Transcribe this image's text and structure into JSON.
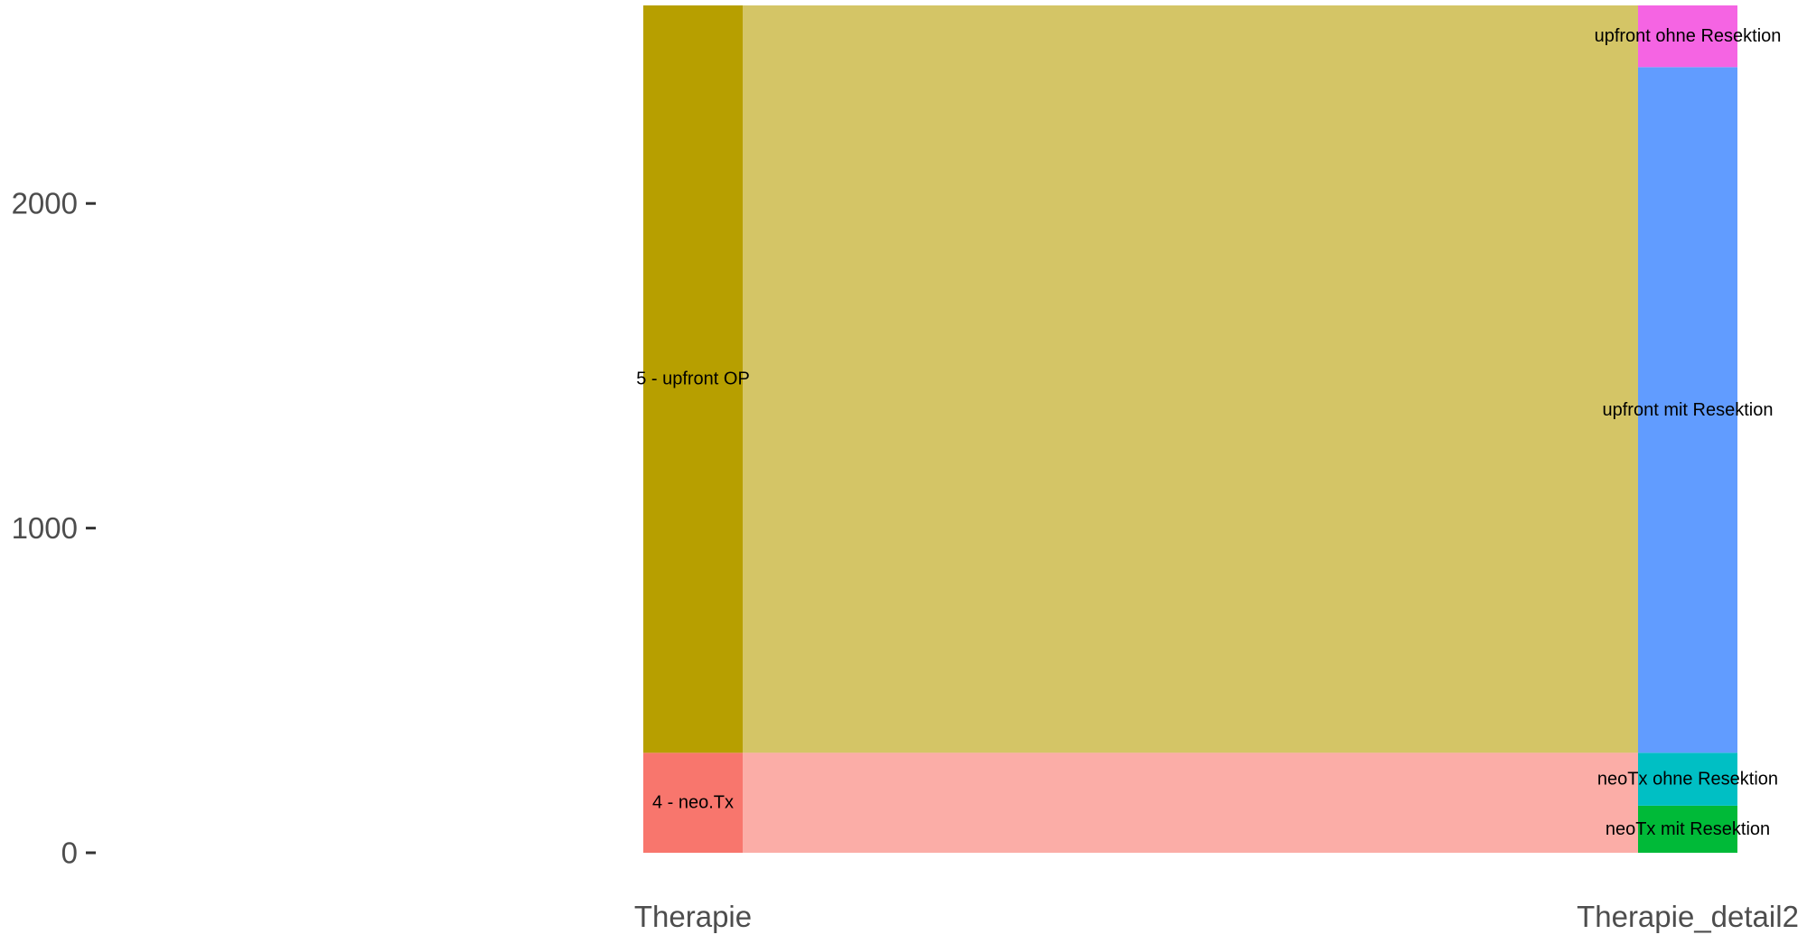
{
  "chart_data": {
    "type": "alluvial",
    "title": "",
    "xlabel": "",
    "ylabel": "",
    "ylim": [
      0,
      2610
    ],
    "y_ticks": [
      0,
      1000,
      2000
    ],
    "y_tick_labels": [
      "0",
      "1000",
      "2000"
    ],
    "axes": [
      "Therapie",
      "Therapie_detail2"
    ],
    "strata": [
      {
        "axis": 0,
        "label": "4 - neo.Tx",
        "from": 0,
        "to": 308,
        "color": "#F8766D"
      },
      {
        "axis": 0,
        "label": "5 - upfront OP",
        "from": 308,
        "to": 2610,
        "color": "#B79F00"
      },
      {
        "axis": 1,
        "label": "neoTx mit Resektion",
        "from": 0,
        "to": 145,
        "color": "#00BA38"
      },
      {
        "axis": 1,
        "label": "neoTx ohne Resektion",
        "from": 145,
        "to": 308,
        "color": "#00BFC4"
      },
      {
        "axis": 1,
        "label": "upfront mit Resektion",
        "from": 308,
        "to": 2420,
        "color": "#619CFF"
      },
      {
        "axis": 1,
        "label": "upfront ohne Resektion",
        "from": 2420,
        "to": 2610,
        "color": "#F564E3"
      }
    ],
    "flows": [
      {
        "from": "4 - neo.Tx",
        "to": "neoTx",
        "value": 308,
        "color": "#F8766D"
      },
      {
        "from": "5 - upfront OP",
        "to": "upfront",
        "value": 2302,
        "color": "#B79F00"
      }
    ],
    "flow_opacity": 0.6,
    "grid": false,
    "legend": "none"
  }
}
